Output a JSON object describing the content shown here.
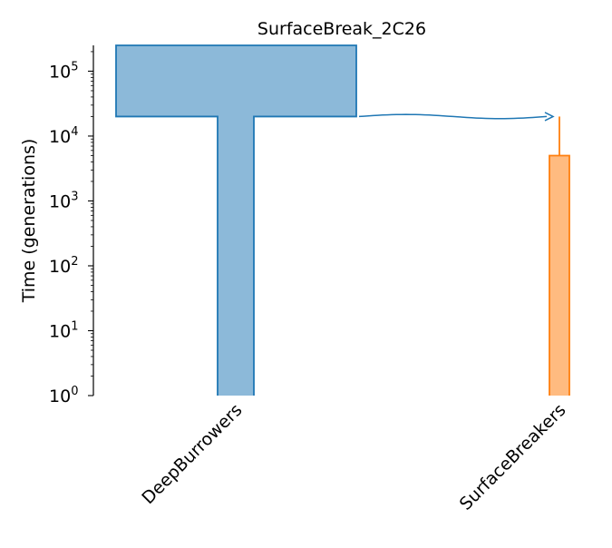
{
  "chart_data": {
    "type": "demography",
    "title": "SurfaceBreak_2C26",
    "ylabel": "Time (generations)",
    "yscale": "log",
    "ylim": [
      1,
      250000
    ],
    "ytick_labels": [
      {
        "value": 1,
        "base": "10",
        "exp": "0"
      },
      {
        "value": 10,
        "base": "10",
        "exp": "1"
      },
      {
        "value": 100,
        "base": "10",
        "exp": "2"
      },
      {
        "value": 1000,
        "base": "10",
        "exp": "3"
      },
      {
        "value": 10000,
        "base": "10",
        "exp": "4"
      },
      {
        "value": 100000,
        "base": "10",
        "exp": "5"
      }
    ],
    "demes": [
      {
        "name": "DeepBurrowers",
        "color": "#1f77b4",
        "fill": "#8cb9d9",
        "epochs": [
          {
            "start_time": 20000,
            "end_time": 0
          },
          {
            "start_time": 250000,
            "end_time": 20000
          }
        ]
      },
      {
        "name": "SurfaceBreakers",
        "color": "#ff7f0e",
        "fill": "#ffbb80",
        "start_time": 5000,
        "ancestor_line_top": 20000,
        "epochs": [
          {
            "start_time": 5000,
            "end_time": 0
          }
        ]
      }
    ],
    "pulses": [
      {
        "source": "DeepBurrowers",
        "dest": "SurfaceBreakers",
        "time": 20000
      }
    ],
    "grid": false,
    "legend": "none"
  }
}
